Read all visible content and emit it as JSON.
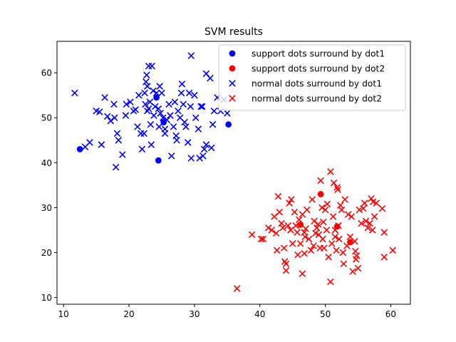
{
  "chart_data": {
    "type": "scatter",
    "title": "SVM results",
    "xlabel": "",
    "ylabel": "",
    "xlim": [
      9,
      63
    ],
    "ylim": [
      8.5,
      67
    ],
    "xticks": [
      10,
      20,
      30,
      40,
      50,
      60
    ],
    "yticks": [
      10,
      20,
      30,
      40,
      50,
      60
    ],
    "grid": false,
    "legend_position": "top-right",
    "series": [
      {
        "name": "support dots surround by dot1",
        "marker": "circle",
        "color": "#0000ff",
        "points": [
          [
            12.5,
            43.0
          ],
          [
            24.2,
            54.5
          ],
          [
            24.5,
            40.5
          ],
          [
            25.3,
            49.0
          ],
          [
            35.2,
            48.5
          ]
        ]
      },
      {
        "name": "support dots surround by dot2",
        "marker": "circle",
        "color": "#ff0000",
        "points": [
          [
            49.3,
            33.0
          ],
          [
            51.8,
            25.8
          ],
          [
            46.2,
            26.2
          ],
          [
            53.8,
            22.3
          ]
        ]
      },
      {
        "name": "normal dots surround by dot1",
        "marker": "x",
        "color": "#0000ff",
        "points": [
          [
            11.7,
            55.5
          ],
          [
            13.3,
            43.5
          ],
          [
            14.0,
            44.5
          ],
          [
            15.0,
            51.5
          ],
          [
            15.5,
            51.3
          ],
          [
            15.8,
            44.0
          ],
          [
            16.3,
            54.5
          ],
          [
            16.7,
            50.3
          ],
          [
            17.2,
            49.3
          ],
          [
            17.7,
            53.0
          ],
          [
            17.8,
            50.0
          ],
          [
            18.2,
            46.5
          ],
          [
            18.0,
            39.0
          ],
          [
            18.4,
            45.0
          ],
          [
            19.0,
            41.8
          ],
          [
            19.5,
            50.5
          ],
          [
            19.6,
            53.0
          ],
          [
            20.2,
            53.5
          ],
          [
            20.7,
            51.5
          ],
          [
            21.0,
            51.8
          ],
          [
            21.5,
            55.0
          ],
          [
            21.3,
            48.0
          ],
          [
            21.8,
            46.5
          ],
          [
            22.0,
            43.0
          ],
          [
            22.3,
            46.5
          ],
          [
            22.4,
            55.5
          ],
          [
            22.6,
            58.0
          ],
          [
            22.7,
            59.5
          ],
          [
            22.8,
            57.0
          ],
          [
            22.5,
            53.0
          ],
          [
            22.8,
            51.5
          ],
          [
            23.0,
            52.0
          ],
          [
            23.0,
            61.5
          ],
          [
            23.2,
            53.5
          ],
          [
            23.3,
            48.5
          ],
          [
            23.4,
            44.0
          ],
          [
            23.5,
            61.5
          ],
          [
            23.7,
            56.0
          ],
          [
            23.8,
            50.5
          ],
          [
            24.0,
            52.5
          ],
          [
            24.2,
            55.5
          ],
          [
            24.5,
            52.0
          ],
          [
            24.6,
            48.0
          ],
          [
            24.7,
            57.0
          ],
          [
            24.8,
            51.0
          ],
          [
            25.0,
            55.5
          ],
          [
            25.2,
            50.0
          ],
          [
            25.5,
            47.5
          ],
          [
            25.5,
            46.5
          ],
          [
            25.8,
            49.5
          ],
          [
            26.1,
            53.0
          ],
          [
            26.3,
            50.5
          ],
          [
            26.5,
            41.5
          ],
          [
            26.8,
            48.0
          ],
          [
            27.0,
            53.5
          ],
          [
            27.2,
            46.0
          ],
          [
            27.3,
            45.0
          ],
          [
            27.5,
            51.5
          ],
          [
            27.8,
            50.0
          ],
          [
            28.0,
            55.5
          ],
          [
            28.1,
            57.5
          ],
          [
            28.3,
            53.0
          ],
          [
            28.5,
            49.0
          ],
          [
            28.7,
            48.0
          ],
          [
            29.0,
            44.5
          ],
          [
            29.2,
            55.5
          ],
          [
            29.4,
            52.5
          ],
          [
            29.5,
            41.0
          ],
          [
            29.5,
            63.8
          ],
          [
            30.0,
            55.0
          ],
          [
            30.2,
            50.0
          ],
          [
            30.6,
            47.5
          ],
          [
            30.8,
            41.0
          ],
          [
            31.0,
            52.5
          ],
          [
            31.2,
            52.5
          ],
          [
            31.3,
            41.5
          ],
          [
            31.5,
            43.0
          ],
          [
            31.8,
            44.0
          ],
          [
            31.8,
            59.8
          ],
          [
            32.4,
            58.8
          ],
          [
            32.6,
            43.3
          ],
          [
            32.8,
            48.5
          ],
          [
            33.0,
            51.5
          ],
          [
            33.5,
            54.5
          ],
          [
            34.0,
            51.5
          ],
          [
            34.5,
            54.0
          ],
          [
            35.0,
            51.0
          ]
        ]
      },
      {
        "name": "normal dots surround by dot2",
        "marker": "x",
        "color": "#ff0000",
        "points": [
          [
            36.5,
            12.0
          ],
          [
            38.8,
            24.0
          ],
          [
            40.2,
            23.0
          ],
          [
            40.5,
            23.0
          ],
          [
            41.3,
            25.5
          ],
          [
            41.8,
            25.0
          ],
          [
            42.2,
            28.0
          ],
          [
            42.5,
            24.3
          ],
          [
            42.6,
            20.5
          ],
          [
            42.8,
            32.5
          ],
          [
            43.0,
            29.0
          ],
          [
            43.3,
            26.5
          ],
          [
            43.5,
            25.5
          ],
          [
            43.7,
            21.0
          ],
          [
            43.8,
            18.0
          ],
          [
            44.0,
            17.5
          ],
          [
            44.0,
            16.0
          ],
          [
            44.3,
            26.0
          ],
          [
            44.5,
            31.0
          ],
          [
            44.7,
            25.0
          ],
          [
            44.8,
            31.8
          ],
          [
            45.0,
            22.0
          ],
          [
            45.3,
            29.0
          ],
          [
            45.5,
            26.0
          ],
          [
            45.7,
            24.5
          ],
          [
            45.8,
            19.5
          ],
          [
            46.0,
            27.3
          ],
          [
            46.2,
            22.0
          ],
          [
            46.5,
            28.5
          ],
          [
            46.5,
            15.3
          ],
          [
            46.8,
            19.8
          ],
          [
            46.8,
            24.5
          ],
          [
            46.9,
            23.5
          ],
          [
            47.0,
            25.3
          ],
          [
            47.2,
            29.5
          ],
          [
            47.5,
            23.0
          ],
          [
            47.8,
            20.5
          ],
          [
            48.0,
            31.8
          ],
          [
            48.2,
            21.5
          ],
          [
            48.3,
            27.0
          ],
          [
            48.5,
            24.3
          ],
          [
            48.7,
            25.5
          ],
          [
            48.9,
            26.3
          ],
          [
            49.0,
            24.0
          ],
          [
            49.2,
            21.0
          ],
          [
            49.3,
            36.0
          ],
          [
            49.5,
            30.0
          ],
          [
            49.6,
            23.0
          ],
          [
            49.7,
            26.8
          ],
          [
            49.8,
            21.0
          ],
          [
            50.0,
            29.5
          ],
          [
            50.2,
            25.0
          ],
          [
            50.3,
            30.8
          ],
          [
            50.5,
            19.0
          ],
          [
            50.8,
            38.0
          ],
          [
            50.8,
            13.5
          ],
          [
            51.0,
            22.0
          ],
          [
            51.2,
            28.0
          ],
          [
            51.3,
            35.5
          ],
          [
            51.5,
            25.0
          ],
          [
            51.5,
            23.5
          ],
          [
            51.7,
            20.5
          ],
          [
            51.8,
            34.5
          ],
          [
            51.9,
            34.0
          ],
          [
            52.0,
            26.0
          ],
          [
            52.1,
            23.0
          ],
          [
            52.3,
            30.5
          ],
          [
            52.5,
            29.5
          ],
          [
            52.7,
            20.0
          ],
          [
            52.8,
            17.5
          ],
          [
            53.0,
            31.8
          ],
          [
            53.3,
            21.5
          ],
          [
            53.5,
            28.5
          ],
          [
            53.8,
            23.5
          ],
          [
            54.0,
            28.0
          ],
          [
            54.2,
            15.8
          ],
          [
            54.5,
            22.5
          ],
          [
            54.6,
            20.3
          ],
          [
            54.7,
            18.5
          ],
          [
            54.8,
            19.3
          ],
          [
            55.0,
            16.5
          ],
          [
            55.2,
            29.5
          ],
          [
            55.5,
            26.5
          ],
          [
            55.8,
            29.8
          ],
          [
            56.0,
            31.0
          ],
          [
            56.2,
            27.0
          ],
          [
            56.5,
            25.5
          ],
          [
            56.8,
            26.5
          ],
          [
            57.0,
            32.0
          ],
          [
            57.2,
            25.0
          ],
          [
            57.3,
            31.3
          ],
          [
            57.5,
            28.0
          ],
          [
            57.8,
            31.0
          ],
          [
            58.7,
            29.8
          ],
          [
            59.0,
            24.5
          ],
          [
            59.0,
            19.0
          ],
          [
            60.3,
            20.5
          ]
        ]
      }
    ]
  }
}
